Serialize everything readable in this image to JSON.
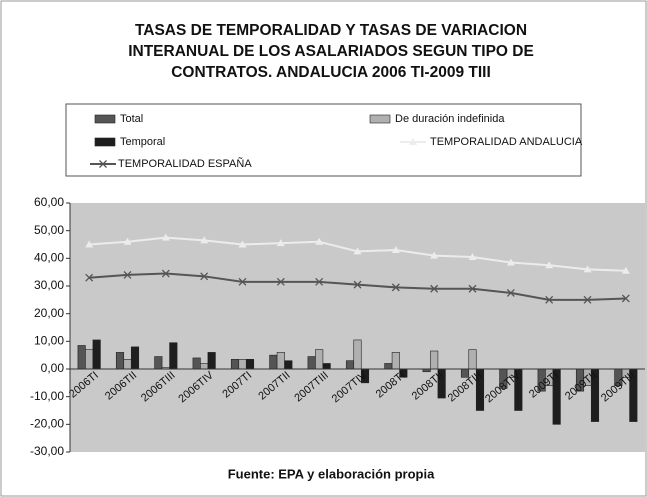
{
  "chart_data": {
    "type": "bar",
    "title": [
      "TASAS DE TEMPORALIDAD Y TASAS DE VARIACION",
      "INTERANUAL DE LOS ASALARIADOS SEGUN TIPO DE",
      "CONTRATOS. ANDALUCIA 2006 TI-2009 TIII"
    ],
    "source": "Fuente: EPA y elaboración propia",
    "categories": [
      "2006TI",
      "2006TII",
      "2006TIII",
      "2006TIV",
      "2007TI",
      "2007TII",
      "2007TIII",
      "2007TIV",
      "2008TI",
      "2008TII",
      "2008TIII",
      "2008TIV",
      "2009TI",
      "2009TII",
      "2009TIII"
    ],
    "series": [
      {
        "name": "Total",
        "type": "bar",
        "color": "#555555",
        "values": [
          8.5,
          6,
          4.5,
          4,
          3.5,
          5,
          4.5,
          3,
          2,
          -1,
          -3,
          -7,
          -8,
          -8,
          -6
        ]
      },
      {
        "name": "De duración indefinida",
        "type": "bar",
        "color": "#b0b0b0",
        "values": [
          7,
          3.5,
          0.5,
          2,
          3.5,
          6,
          7,
          10.5,
          6,
          6.5,
          7,
          -3,
          -6,
          -6,
          -3
        ]
      },
      {
        "name": "Temporal",
        "type": "bar",
        "color": "#1e1e1e",
        "values": [
          10.5,
          8,
          9.5,
          6,
          3.5,
          3,
          2,
          -5,
          -3,
          -10.5,
          -15,
          -15,
          -20,
          -19,
          -19
        ]
      },
      {
        "name": "TEMPORALIDAD ANDALUCIA",
        "type": "line",
        "marker": "triangle",
        "color": "#ececec",
        "values": [
          45,
          46,
          47.5,
          46.5,
          45,
          45.5,
          46,
          42.5,
          43,
          41,
          40.5,
          38.5,
          37.5,
          36,
          35.5
        ]
      },
      {
        "name": "TEMPORALIDAD ESPAÑA",
        "type": "line",
        "marker": "x",
        "color": "#555555",
        "values": [
          33,
          34,
          34.5,
          33.5,
          31.5,
          31.5,
          31.5,
          30.5,
          29.5,
          29,
          29,
          27.5,
          25,
          25,
          25.5
        ]
      }
    ],
    "ylim": [
      -30,
      60
    ],
    "yticks": [
      {
        "value": -30,
        "label": "-30,00"
      },
      {
        "value": -20,
        "label": "-20,00"
      },
      {
        "value": -10,
        "label": "-10,00"
      },
      {
        "value": 0,
        "label": "0,00"
      },
      {
        "value": 10,
        "label": "10,00"
      },
      {
        "value": 20,
        "label": "20,00"
      },
      {
        "value": 30,
        "label": "30,00"
      },
      {
        "value": 40,
        "label": "40,00"
      },
      {
        "value": 50,
        "label": "50,00"
      },
      {
        "value": 60,
        "label": "60,00"
      }
    ],
    "plot_background": "#c9c9c9"
  }
}
